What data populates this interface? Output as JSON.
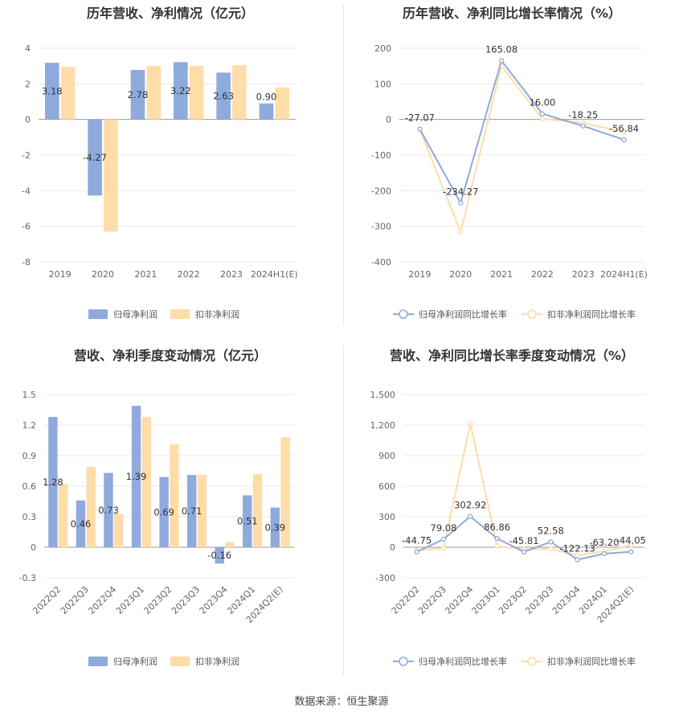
{
  "source_label": "数据来源：恒生聚源",
  "colors": {
    "primary": "#8faadc",
    "secondary": "#ffdca8",
    "grid": "#e8e8e8",
    "axis": "#999999"
  },
  "chart_data": [
    {
      "type": "bar",
      "title": "历年营收、净利情况（亿元）",
      "categories": [
        "2019",
        "2020",
        "2021",
        "2022",
        "2023",
        "2024H1(E)"
      ],
      "ylim": [
        -8,
        4
      ],
      "yticks": [
        4,
        2,
        0,
        -2,
        -4,
        -6,
        -8
      ],
      "series": [
        {
          "name": "归母净利润",
          "values": [
            3.18,
            -4.27,
            2.78,
            3.22,
            2.63,
            0.9
          ],
          "labels": [
            "3.18",
            "-4.27",
            "2.78",
            "3.22",
            "2.63",
            "0.90"
          ]
        },
        {
          "name": "扣非净利润",
          "values": [
            2.95,
            -6.3,
            3.0,
            3.0,
            3.05,
            1.8
          ]
        }
      ],
      "legend": "bottom"
    },
    {
      "type": "line",
      "title": "历年营收、净利同比增长率情况（%）",
      "categories": [
        "2019",
        "2020",
        "2021",
        "2022",
        "2023",
        "2024H1(E)"
      ],
      "ylim": [
        -400,
        200
      ],
      "yticks": [
        200,
        100,
        0,
        -100,
        -200,
        -300,
        -400
      ],
      "series": [
        {
          "name": "归母净利润同比增长率",
          "values": [
            -27.07,
            -234.27,
            165.08,
            16.0,
            -18.25,
            -56.84
          ],
          "labels": [
            "-27.07",
            "-234.27",
            "165.08",
            "16.00",
            "-18.25",
            "-56.84"
          ]
        },
        {
          "name": "扣非净利润同比增长率",
          "values": [
            -28,
            -316,
            150,
            2,
            -10,
            -35
          ]
        }
      ],
      "legend": "bottom"
    },
    {
      "type": "bar",
      "title": "营收、净利季度变动情况（亿元）",
      "categories": [
        "2022Q2",
        "2022Q3",
        "2022Q4",
        "2023Q1",
        "2023Q2",
        "2023Q3",
        "2023Q4",
        "2024Q1",
        "2024Q2(E)"
      ],
      "ylim": [
        -0.3,
        1.5
      ],
      "yticks": [
        1.5,
        1.2,
        0.9,
        0.6,
        0.3,
        0,
        -0.3
      ],
      "series": [
        {
          "name": "归母净利润",
          "values": [
            1.28,
            0.46,
            0.73,
            1.39,
            0.69,
            0.71,
            -0.16,
            0.51,
            0.39
          ],
          "labels": [
            "1.28",
            "0.46",
            "0.73",
            "1.39",
            "0.69",
            "0.71",
            "-0.16",
            "0.51",
            "0.39"
          ]
        },
        {
          "name": "扣非净利润",
          "values": [
            0.62,
            0.79,
            0.33,
            1.28,
            1.01,
            0.71,
            0.05,
            0.72,
            1.08
          ]
        }
      ],
      "legend": "bottom"
    },
    {
      "type": "line",
      "title": "营收、净利同比增长率季度变动情况（%）",
      "categories": [
        "2022Q2",
        "2022Q3",
        "2022Q4",
        "2023Q1",
        "2023Q2",
        "2023Q3",
        "2023Q4",
        "2024Q1",
        "2024Q2(E)"
      ],
      "ylim": [
        -300,
        1500
      ],
      "yticks": [
        1500,
        1200,
        900,
        600,
        300,
        0,
        -300
      ],
      "ytick_labels": [
        "1,500",
        "1,200",
        "900",
        "600",
        "300",
        "0",
        "-300"
      ],
      "series": [
        {
          "name": "归母净利润同比增长率",
          "values": [
            -44.75,
            79.08,
            302.92,
            86.86,
            -45.81,
            52.58,
            -122.13,
            -63.2,
            -44.05
          ],
          "labels": [
            "-44.75",
            "79.08",
            "302.92",
            "86.86",
            "-45.81",
            "52.58",
            "-122.13",
            "-63.20",
            "-44.05"
          ]
        },
        {
          "name": "扣非净利润同比增长率",
          "values": [
            -30,
            -10,
            1215,
            10,
            -20,
            -15,
            -80,
            -40,
            20
          ]
        }
      ],
      "legend": "bottom"
    }
  ]
}
